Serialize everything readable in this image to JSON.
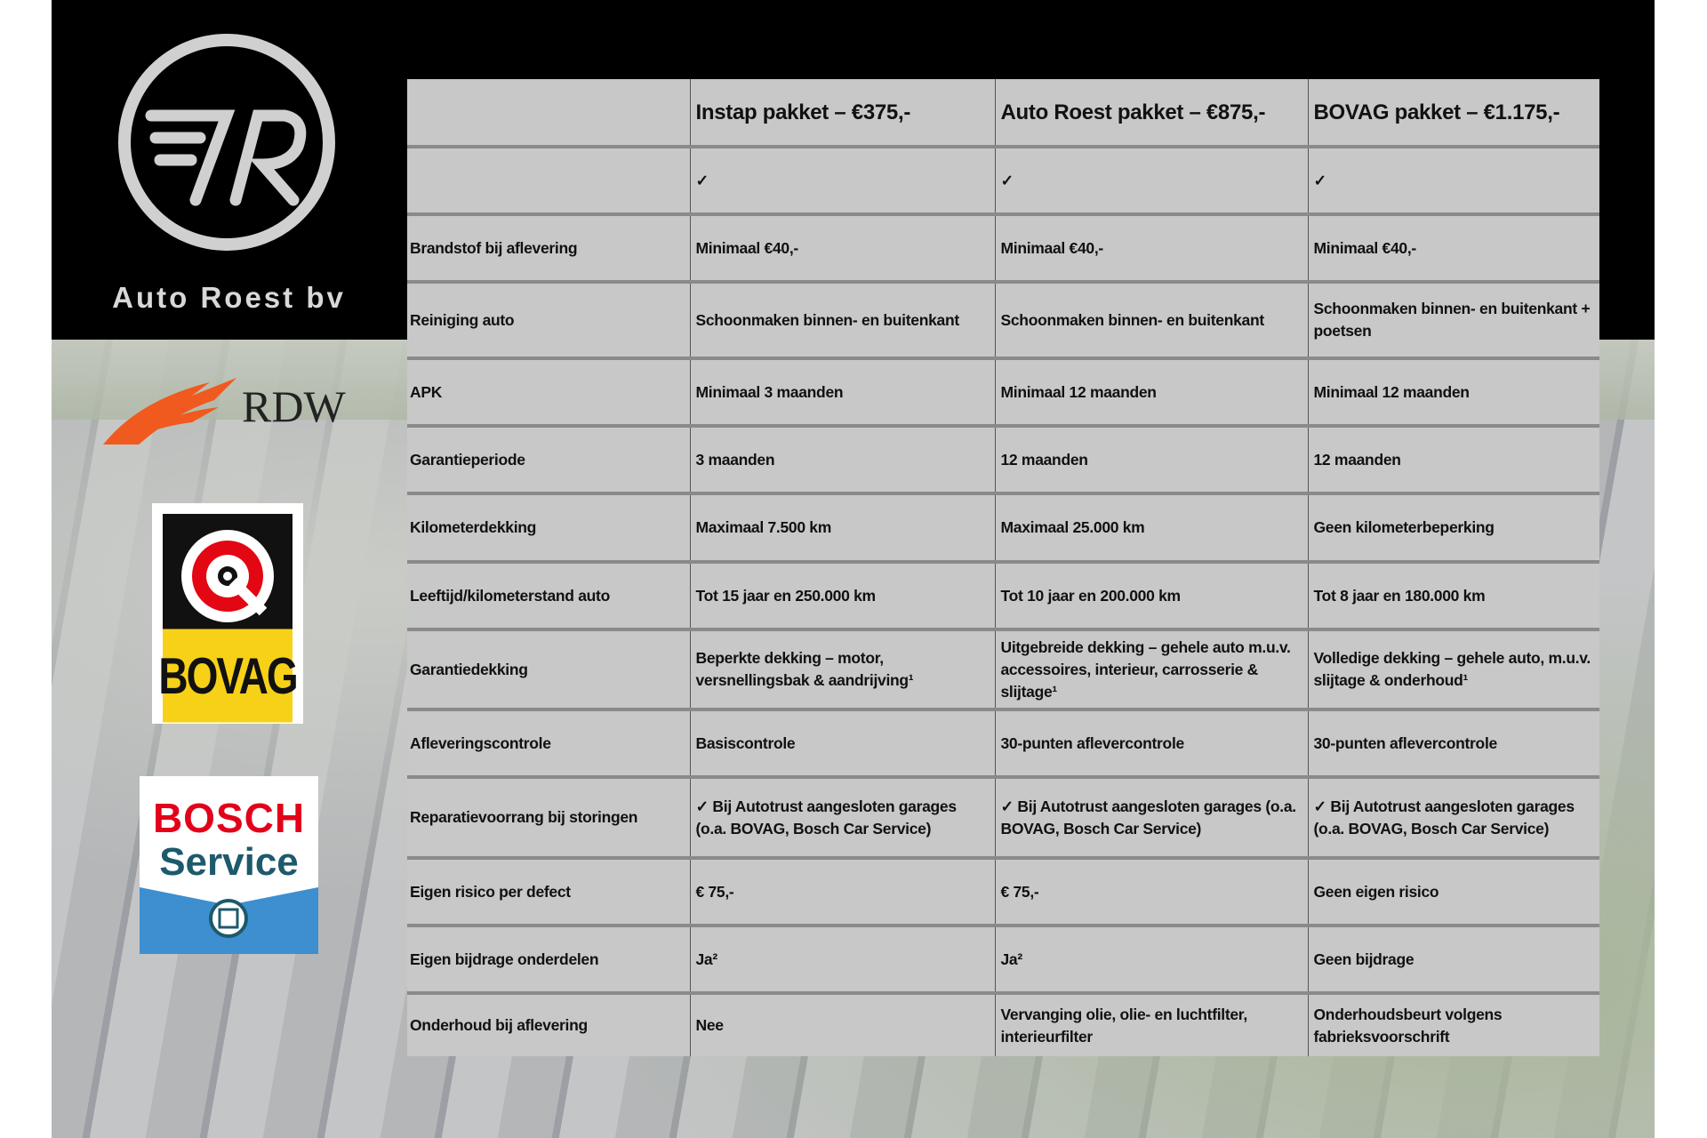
{
  "brand": {
    "name": "Auto Roest bv",
    "logo_text": "7R"
  },
  "logos": {
    "rdw": "RDW",
    "bovag": "BOVAG",
    "bosch_line1": "BOSCH",
    "bosch_line2": "Service"
  },
  "colors": {
    "table_bg": "#c8c8c8",
    "rdw_orange": "#f05a1e",
    "bovag_yellow": "#f7d117",
    "bosch_red": "#e2001a",
    "bosch_blue": "#3d8fd0"
  },
  "table": {
    "headers": [
      "",
      "Instap pakket – €375,-",
      "Auto Roest pakket – €875,-",
      "BOVAG pakket – €1.175,-"
    ],
    "rows": [
      [
        "",
        "✓",
        "✓",
        "✓"
      ],
      [
        "Brandstof bij aflevering",
        "Minimaal €40,-",
        "Minimaal €40,-",
        "Minimaal €40,-"
      ],
      [
        "Reiniging auto",
        "Schoonmaken binnen- en buitenkant",
        "Schoonmaken binnen- en buitenkant",
        "Schoonmaken binnen- en buitenkant + poetsen"
      ],
      [
        "APK",
        "Minimaal 3 maanden",
        "Minimaal 12 maanden",
        "Minimaal 12 maanden"
      ],
      [
        "Garantieperiode",
        "3 maanden",
        "12 maanden",
        "12 maanden"
      ],
      [
        "Kilometerdekking",
        "Maximaal 7.500 km",
        "Maximaal 25.000 km",
        "Geen kilometerbeperking"
      ],
      [
        "Leeftijd/kilometerstand auto",
        "Tot 15 jaar en 250.000 km",
        "Tot 10 jaar en 200.000 km",
        "Tot 8 jaar en 180.000 km"
      ],
      [
        "Garantiedekking",
        "Beperkte dekking – motor, versnellingsbak & aandrijving¹",
        "Uitgebreide dekking – gehele auto m.u.v. accessoires, interieur, carrosserie & slijtage¹",
        "Volledige dekking – gehele auto, m.u.v. slijtage & onderhoud¹"
      ],
      [
        "Afleveringscontrole",
        "Basiscontrole",
        "30-punten aflevercontrole",
        "30-punten aflevercontrole"
      ],
      [
        "Reparatievoorrang bij storingen",
        "✓ Bij Autotrust aangesloten garages (o.a. BOVAG, Bosch Car Service)",
        "✓ Bij Autotrust aangesloten garages (o.a. BOVAG, Bosch Car Service)",
        "✓ Bij Autotrust aangesloten garages (o.a. BOVAG, Bosch Car Service)"
      ],
      [
        "Eigen risico per defect",
        "€ 75,-",
        "€ 75,-",
        "Geen eigen risico"
      ],
      [
        "Eigen bijdrage onderdelen",
        "Ja²",
        "Ja²",
        "Geen bijdrage"
      ],
      [
        "Onderhoud bij aflevering",
        "Nee",
        "Vervanging olie, olie- en luchtfilter, interieurfilter",
        "Onderhoudsbeurt volgens fabrieksvoorschrift"
      ]
    ]
  }
}
